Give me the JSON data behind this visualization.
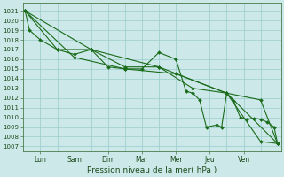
{
  "title": "",
  "xlabel": "Pression niveau de la mer( hPa )",
  "bg_color": "#cce8e8",
  "grid_color": "#99cccc",
  "line_color": "#1a6b1a",
  "marker_color": "#1a6b1a",
  "ylim": [
    1006.5,
    1021.8
  ],
  "yticks": [
    1007,
    1008,
    1009,
    1010,
    1011,
    1012,
    1013,
    1014,
    1015,
    1016,
    1017,
    1018,
    1019,
    1020,
    1021
  ],
  "xtick_labels": [
    "Lun",
    "Sam",
    "Dim",
    "Mar",
    "Mer",
    "Jeu",
    "Ven"
  ],
  "xtick_pos": [
    0.5,
    1.5,
    2.5,
    3.5,
    4.5,
    5.5,
    6.5
  ],
  "xlim": [
    0,
    7.6
  ],
  "series": [
    {
      "x": [
        0.05,
        0.18,
        0.5,
        1.0,
        1.5,
        2.0,
        2.5,
        3.0,
        3.5,
        4.0,
        4.5,
        4.8,
        5.0,
        5.2,
        5.4,
        5.7,
        5.85,
        6.0,
        6.2,
        6.4,
        6.6,
        6.8,
        7.0,
        7.2,
        7.4,
        7.5
      ],
      "y": [
        1021.0,
        1019.0,
        1018.0,
        1017.0,
        1016.5,
        1017.0,
        1015.2,
        1015.0,
        1015.0,
        1016.7,
        1016.0,
        1012.7,
        1012.5,
        1011.8,
        1009.0,
        1009.2,
        1009.0,
        1012.5,
        1011.7,
        1010.0,
        1009.8,
        1009.9,
        1009.8,
        1009.5,
        1009.0,
        1007.3
      ]
    },
    {
      "x": [
        0.05,
        1.0,
        2.0,
        3.0,
        4.0,
        5.0,
        6.0,
        7.0,
        7.5
      ],
      "y": [
        1021.0,
        1017.0,
        1017.0,
        1015.2,
        1015.2,
        1013.0,
        1012.5,
        1011.8,
        1007.3
      ]
    },
    {
      "x": [
        0.05,
        1.5,
        3.0,
        4.5,
        6.0,
        7.0,
        7.5
      ],
      "y": [
        1021.0,
        1016.2,
        1015.0,
        1014.5,
        1012.5,
        1007.5,
        1007.3
      ]
    },
    {
      "x": [
        0.05,
        2.0,
        4.0,
        6.0,
        7.5
      ],
      "y": [
        1021.0,
        1017.0,
        1015.2,
        1012.5,
        1007.3
      ]
    }
  ]
}
